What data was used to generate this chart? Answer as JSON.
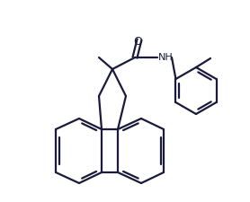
{
  "line_color": "#1a1a3a",
  "line_width": 1.6,
  "bg_color": "#ffffff",
  "figsize": [
    2.78,
    2.26
  ],
  "dpi": 100,
  "NH_fontsize": 8,
  "O_fontsize": 9
}
